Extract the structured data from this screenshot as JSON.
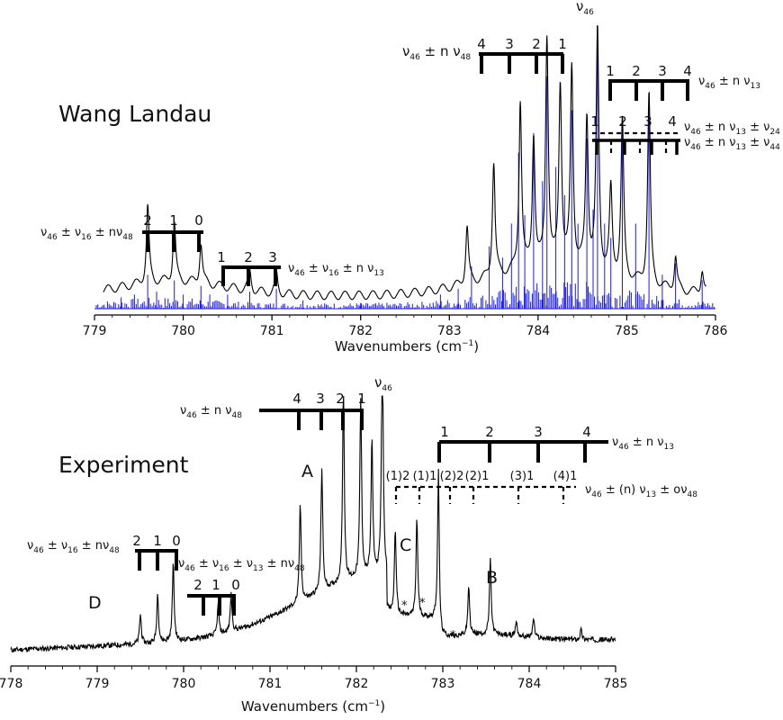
{
  "chart_data": [
    {
      "type": "line",
      "panel": "Wang Landau",
      "xlabel_main": "Wavenumbers (cm",
      "xlabel_sup": "−1",
      "xlabel_end": ")",
      "xlim": [
        779,
        786
      ],
      "ticks": [
        "779",
        "780",
        "781",
        "782",
        "783",
        "784",
        "785",
        "786"
      ],
      "labels": {
        "panel_title": "Wang Landau",
        "peak_top": "ν",
        "peak_top_sub": "46",
        "comb_n48_main": "ν",
        "comb_n48_rest": " ± n ν",
        "comb_n48_nums": [
          "4",
          "3",
          "2",
          "1"
        ],
        "comb_n13_text": " ± n ν",
        "comb_n13_nums": [
          "1",
          "2",
          "3",
          "4"
        ],
        "comb_24_nums": [
          "1",
          "2",
          "3",
          "4"
        ],
        "comb_24_text": " ± n ν",
        "comb_24_text2": " ± ν",
        "comb_44_text": " ± n ν",
        "comb_44_text2": " ± ν",
        "comb_16_48_text": " ± ν",
        "comb_16_48_text2": " ± nν",
        "comb_16_48_nums": [
          "2",
          "1",
          "0"
        ],
        "comb_16_13_nums": [
          "1",
          "2",
          "3"
        ],
        "comb_16_13_text": " ± ν",
        "comb_16_13_text2": " ± n ν",
        "sub46": "46",
        "sub48": "48",
        "sub13": "13",
        "sub24": "24",
        "sub44": "44",
        "sub16": "16"
      },
      "series": [
        {
          "color": "#1a1aff",
          "peaks": [
            [
              779.3,
              0.04
            ],
            [
              779.45,
              0.05
            ],
            [
              779.6,
              0.12
            ],
            [
              779.7,
              0.06
            ],
            [
              779.9,
              0.1
            ],
            [
              780.0,
              0.05
            ],
            [
              780.2,
              0.08
            ],
            [
              780.3,
              0.05
            ],
            [
              780.5,
              0.05
            ],
            [
              780.75,
              0.06
            ],
            [
              781.05,
              0.07
            ],
            [
              781.35,
              0.03
            ],
            [
              782.0,
              0.02
            ],
            [
              782.9,
              0.05
            ],
            [
              783.1,
              0.07
            ],
            [
              783.25,
              0.15
            ],
            [
              783.45,
              0.22
            ],
            [
              783.6,
              0.18
            ],
            [
              783.7,
              0.3
            ],
            [
              783.78,
              0.55
            ],
            [
              783.85,
              0.33
            ],
            [
              783.95,
              0.62
            ],
            [
              784.05,
              0.45
            ],
            [
              784.1,
              0.82
            ],
            [
              784.2,
              0.5
            ],
            [
              784.3,
              0.4
            ],
            [
              784.38,
              0.7
            ],
            [
              784.45,
              0.3
            ],
            [
              784.55,
              0.6
            ],
            [
              784.62,
              0.35
            ],
            [
              784.67,
              1.0
            ],
            [
              784.75,
              0.3
            ],
            [
              784.82,
              0.25
            ],
            [
              784.95,
              0.68
            ],
            [
              785.1,
              0.3
            ],
            [
              785.25,
              0.76
            ],
            [
              785.4,
              0.12
            ],
            [
              785.55,
              0.16
            ],
            [
              785.85,
              0.1
            ]
          ]
        },
        {
          "color": "#000000",
          "envelope_peaks": [
            [
              779.6,
              0.32
            ],
            [
              779.9,
              0.25
            ],
            [
              780.2,
              0.17
            ],
            [
              780.75,
              0.08
            ],
            [
              781.05,
              0.08
            ],
            [
              783.2,
              0.24
            ],
            [
              783.5,
              0.48
            ],
            [
              783.8,
              0.71
            ],
            [
              783.95,
              0.55
            ],
            [
              784.1,
              0.96
            ],
            [
              784.25,
              0.76
            ],
            [
              784.38,
              0.83
            ],
            [
              784.55,
              0.63
            ],
            [
              784.67,
              1.0
            ],
            [
              784.82,
              0.35
            ],
            [
              784.95,
              0.65
            ],
            [
              785.25,
              0.8
            ],
            [
              785.55,
              0.14
            ],
            [
              785.85,
              0.1
            ]
          ]
        }
      ]
    },
    {
      "type": "line",
      "panel": "Experiment",
      "xlabel_main": "Wavenumbers (cm",
      "xlabel_sup": "−1",
      "xlabel_end": ")",
      "xlim": [
        778,
        785
      ],
      "ticks": [
        "778",
        "779",
        "780",
        "781",
        "782",
        "783",
        "784",
        "785"
      ],
      "labels": {
        "panel_title": "Experiment",
        "peak_top": "ν",
        "peak_top_sub": "46",
        "A": "A",
        "B": "B",
        "C": "C",
        "D": "D",
        "comb_n48_text": " ± n ν",
        "comb_n48_nums": [
          "4",
          "3",
          "2",
          "1"
        ],
        "comb_n13_text": " ± n ν",
        "comb_n13_nums": [
          "1",
          "2",
          "3",
          "4"
        ],
        "comb_o48_nums": [
          "(1)2",
          "(1)1",
          "(2)2",
          "(2)1",
          "(3)1",
          "(4)1"
        ],
        "comb_o48_text": " ± (n) ν",
        "comb_o48_text2": " ± oν",
        "comb_d_text": " ± ν",
        "comb_d_text2": " ± nν",
        "comb_d_nums": [
          "2",
          "1",
          "0"
        ],
        "comb_e_nums": [
          "2",
          "1",
          "0"
        ],
        "comb_e_text": " ± ν",
        "comb_e_text2": " ± ν",
        "comb_e_text3": " ± nν",
        "star": "*",
        "sub46": "46",
        "sub48": "48",
        "sub13": "13",
        "sub16": "16"
      },
      "peaks": [
        [
          779.5,
          0.12
        ],
        [
          779.7,
          0.2
        ],
        [
          779.88,
          0.32
        ],
        [
          780.4,
          0.12
        ],
        [
          780.55,
          0.15
        ],
        [
          781.35,
          0.4
        ],
        [
          781.6,
          0.5
        ],
        [
          781.85,
          0.78
        ],
        [
          782.05,
          0.72
        ],
        [
          782.18,
          0.55
        ],
        [
          782.3,
          1.0
        ],
        [
          782.45,
          0.35
        ],
        [
          782.7,
          0.4
        ],
        [
          782.95,
          0.6
        ],
        [
          783.3,
          0.2
        ],
        [
          783.55,
          0.3
        ],
        [
          783.85,
          0.06
        ],
        [
          784.05,
          0.08
        ],
        [
          784.6,
          0.04
        ]
      ]
    }
  ]
}
